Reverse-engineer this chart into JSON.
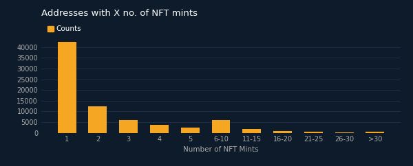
{
  "title": "Addresses with X no. of NFT mints",
  "xlabel": "Number of NFT Mints",
  "categories": [
    "1",
    "2",
    "3",
    "4",
    "5",
    "6-10",
    "11-15",
    "16-20",
    "21-25",
    "26-30",
    ">30"
  ],
  "values": [
    42500,
    12500,
    6000,
    3800,
    2500,
    6000,
    1700,
    800,
    400,
    300,
    650
  ],
  "bar_color": "#F5A623",
  "background_color": "#0d1b2a",
  "grid_color": "#1e3048",
  "text_color": "#ffffff",
  "tick_color": "#aaaaaa",
  "legend_label": "Counts",
  "ylim": [
    0,
    45000
  ],
  "yticks": [
    0,
    5000,
    10000,
    15000,
    20000,
    25000,
    30000,
    35000,
    40000
  ],
  "title_fontsize": 9.5,
  "label_fontsize": 7.5,
  "tick_fontsize": 7
}
